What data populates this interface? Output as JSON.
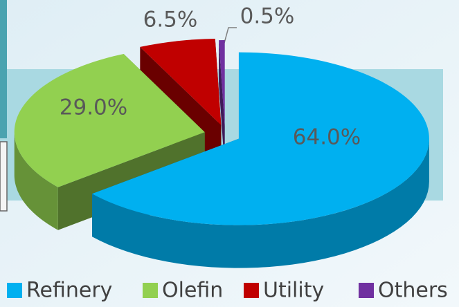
{
  "chart_data": {
    "type": "pie3d",
    "categories": [
      "Refinery",
      "Olefin",
      "Utility",
      "Others"
    ],
    "values": [
      64.0,
      29.0,
      6.5,
      0.5
    ],
    "value_labels": [
      "64.0%",
      "29.0%",
      "6.5%",
      "0.5%"
    ],
    "colors": [
      "#00b0f0",
      "#92d050",
      "#c00000",
      "#7030a0"
    ],
    "legend": "bottom"
  }
}
